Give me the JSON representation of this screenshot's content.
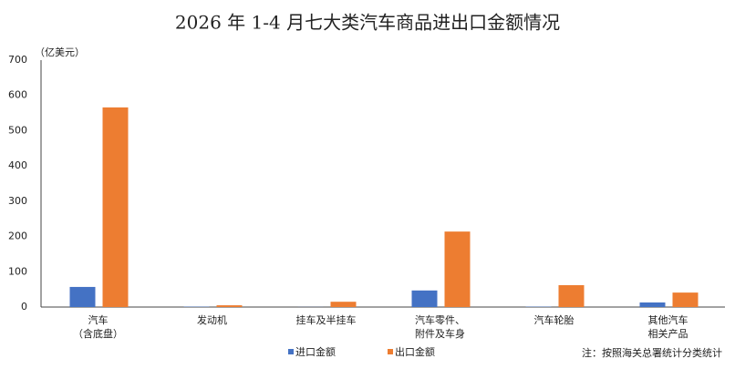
{
  "chart_data": {
    "type": "bar",
    "title": "2026 年 1-4 月七大类汽车商品进出口金额情况",
    "y_unit": "（亿美元）",
    "note": "注：按照海关总署统计分类统计",
    "categories": [
      [
        "汽车",
        "（含底盘）"
      ],
      [
        "发动机"
      ],
      [
        "挂车及半挂车"
      ],
      [
        "汽车零件、",
        "附件及车身"
      ],
      [
        "汽车轮胎"
      ],
      [
        "其他汽车",
        "相关产品"
      ]
    ],
    "series": [
      {
        "name": "进口金额",
        "color": "#4472c4",
        "values": [
          57,
          1,
          0.3,
          47,
          1,
          13
        ]
      },
      {
        "name": "出口金额",
        "color": "#ed7d31",
        "values": [
          566,
          5,
          15,
          214,
          62,
          41
        ]
      }
    ],
    "ylim": [
      0,
      700
    ],
    "yticks": [
      0,
      100,
      200,
      300,
      400,
      500,
      600,
      700
    ],
    "grid": false,
    "legend": "bottom"
  }
}
